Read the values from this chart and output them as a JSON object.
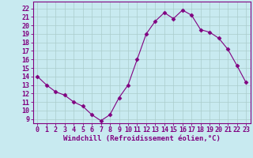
{
  "x": [
    0,
    1,
    2,
    3,
    4,
    5,
    6,
    7,
    8,
    9,
    10,
    11,
    12,
    13,
    14,
    15,
    16,
    17,
    18,
    19,
    20,
    21,
    22,
    23
  ],
  "y": [
    14,
    13,
    12.2,
    11.8,
    11,
    10.5,
    9.5,
    8.8,
    9.5,
    11.5,
    13,
    16,
    19,
    20.5,
    21.5,
    20.8,
    21.8,
    21.2,
    19.5,
    19.2,
    18.5,
    17.2,
    15.3,
    13.3
  ],
  "line_color": "#800080",
  "marker": "D",
  "marker_size": 2.5,
  "bg_color": "#c8eaf0",
  "grid_color": "#aacccc",
  "xlabel": "Windchill (Refroidissement éolien,°C)",
  "yticks": [
    9,
    10,
    11,
    12,
    13,
    14,
    15,
    16,
    17,
    18,
    19,
    20,
    21,
    22
  ],
  "ylim": [
    8.5,
    22.8
  ],
  "xlim": [
    -0.5,
    23.5
  ],
  "xlabel_color": "#800080",
  "tick_color": "#800080",
  "font_size": 6.0,
  "xlabel_font_size": 6.5
}
